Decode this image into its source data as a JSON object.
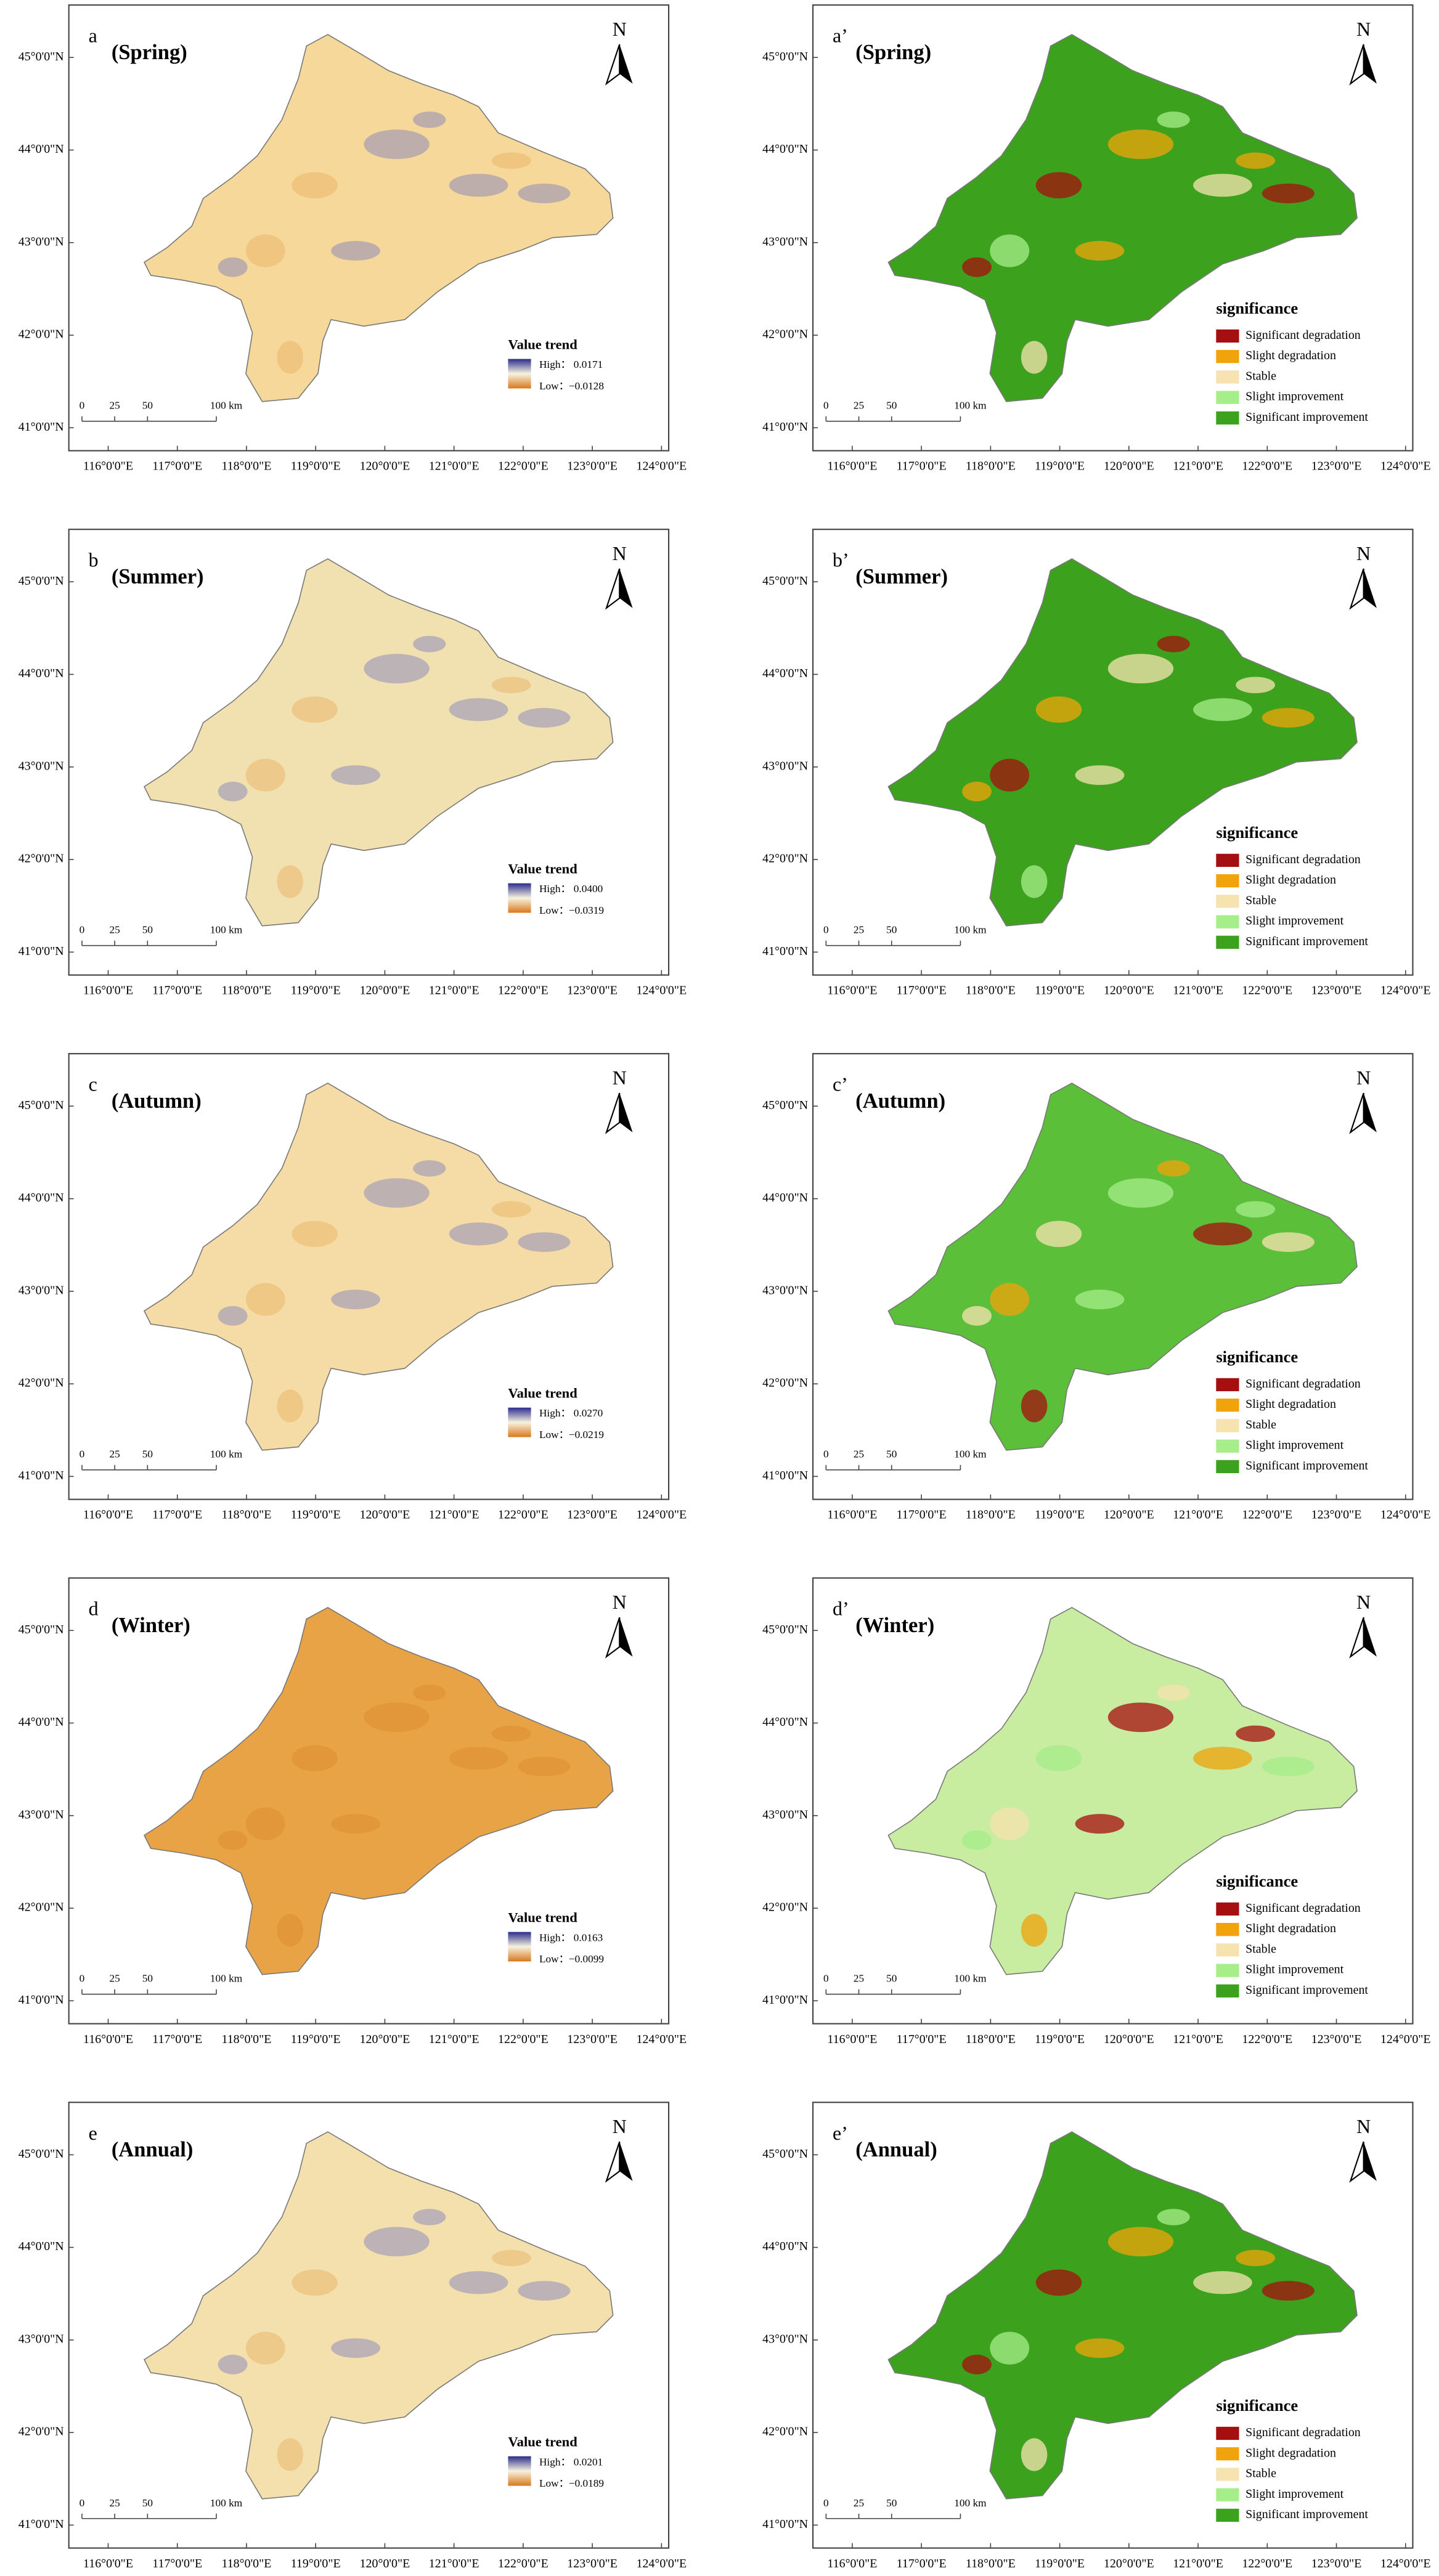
{
  "lat_labels": [
    "45°0'0\"N",
    "44°0'0\"N",
    "43°0'0\"N",
    "42°0'0\"N",
    "41°0'0\"N"
  ],
  "lon_labels": [
    "116°0'0\"E",
    "117°0'0\"E",
    "118°0'0\"E",
    "119°0'0\"E",
    "120°0'0\"E",
    "121°0'0\"E",
    "122°0'0\"E",
    "123°0'0\"E",
    "124°0'0\"E"
  ],
  "scale_bar": [
    "0",
    "25",
    "50",
    "100 km"
  ],
  "north": "N",
  "trend_legend": {
    "title": "Value trend",
    "high_label": "High：",
    "low_label": "Low："
  },
  "significance_legend": {
    "title": "significance",
    "items": [
      {
        "label": "Significant degradation",
        "color": "#a50f0f"
      },
      {
        "label": "Slight degradation",
        "color": "#f0a30a"
      },
      {
        "label": "Stable",
        "color": "#f7e3b0"
      },
      {
        "label": "Slight improvement",
        "color": "#a6ee8a"
      },
      {
        "label": "Significant improvement",
        "color": "#3ca21e"
      }
    ]
  },
  "trend_panels": [
    {
      "letter": "a",
      "season": "(Spring)",
      "high": "0.0171",
      "low": "−0.0128",
      "color": "#f5d89a"
    },
    {
      "letter": "b",
      "season": "(Summer)",
      "high": "0.0400",
      "low": "−0.0319",
      "color": "#f1e0b0"
    },
    {
      "letter": "c",
      "season": "(Autumn)",
      "high": "0.0270",
      "low": "−0.0219",
      "color": "#f5dca6"
    },
    {
      "letter": "d",
      "season": "(Winter)",
      "high": "0.0163",
      "low": "−0.0099",
      "color": "#e9a347"
    },
    {
      "letter": "e",
      "season": "(Annual)",
      "high": "0.0201",
      "low": "−0.0189",
      "color": "#f3e0ad"
    }
  ],
  "significance_panels": [
    {
      "letter": "a’",
      "season": "(Spring)",
      "color": "#3ca21e"
    },
    {
      "letter": "b’",
      "season": "(Summer)",
      "color": "#3ca21e"
    },
    {
      "letter": "c’",
      "season": "(Autumn)",
      "color": "#5cbf3a"
    },
    {
      "letter": "d’",
      "season": "(Winter)",
      "color": "#c8eca0"
    },
    {
      "letter": "e’",
      "season": "(Annual)",
      "color": "#3ca21e"
    }
  ]
}
